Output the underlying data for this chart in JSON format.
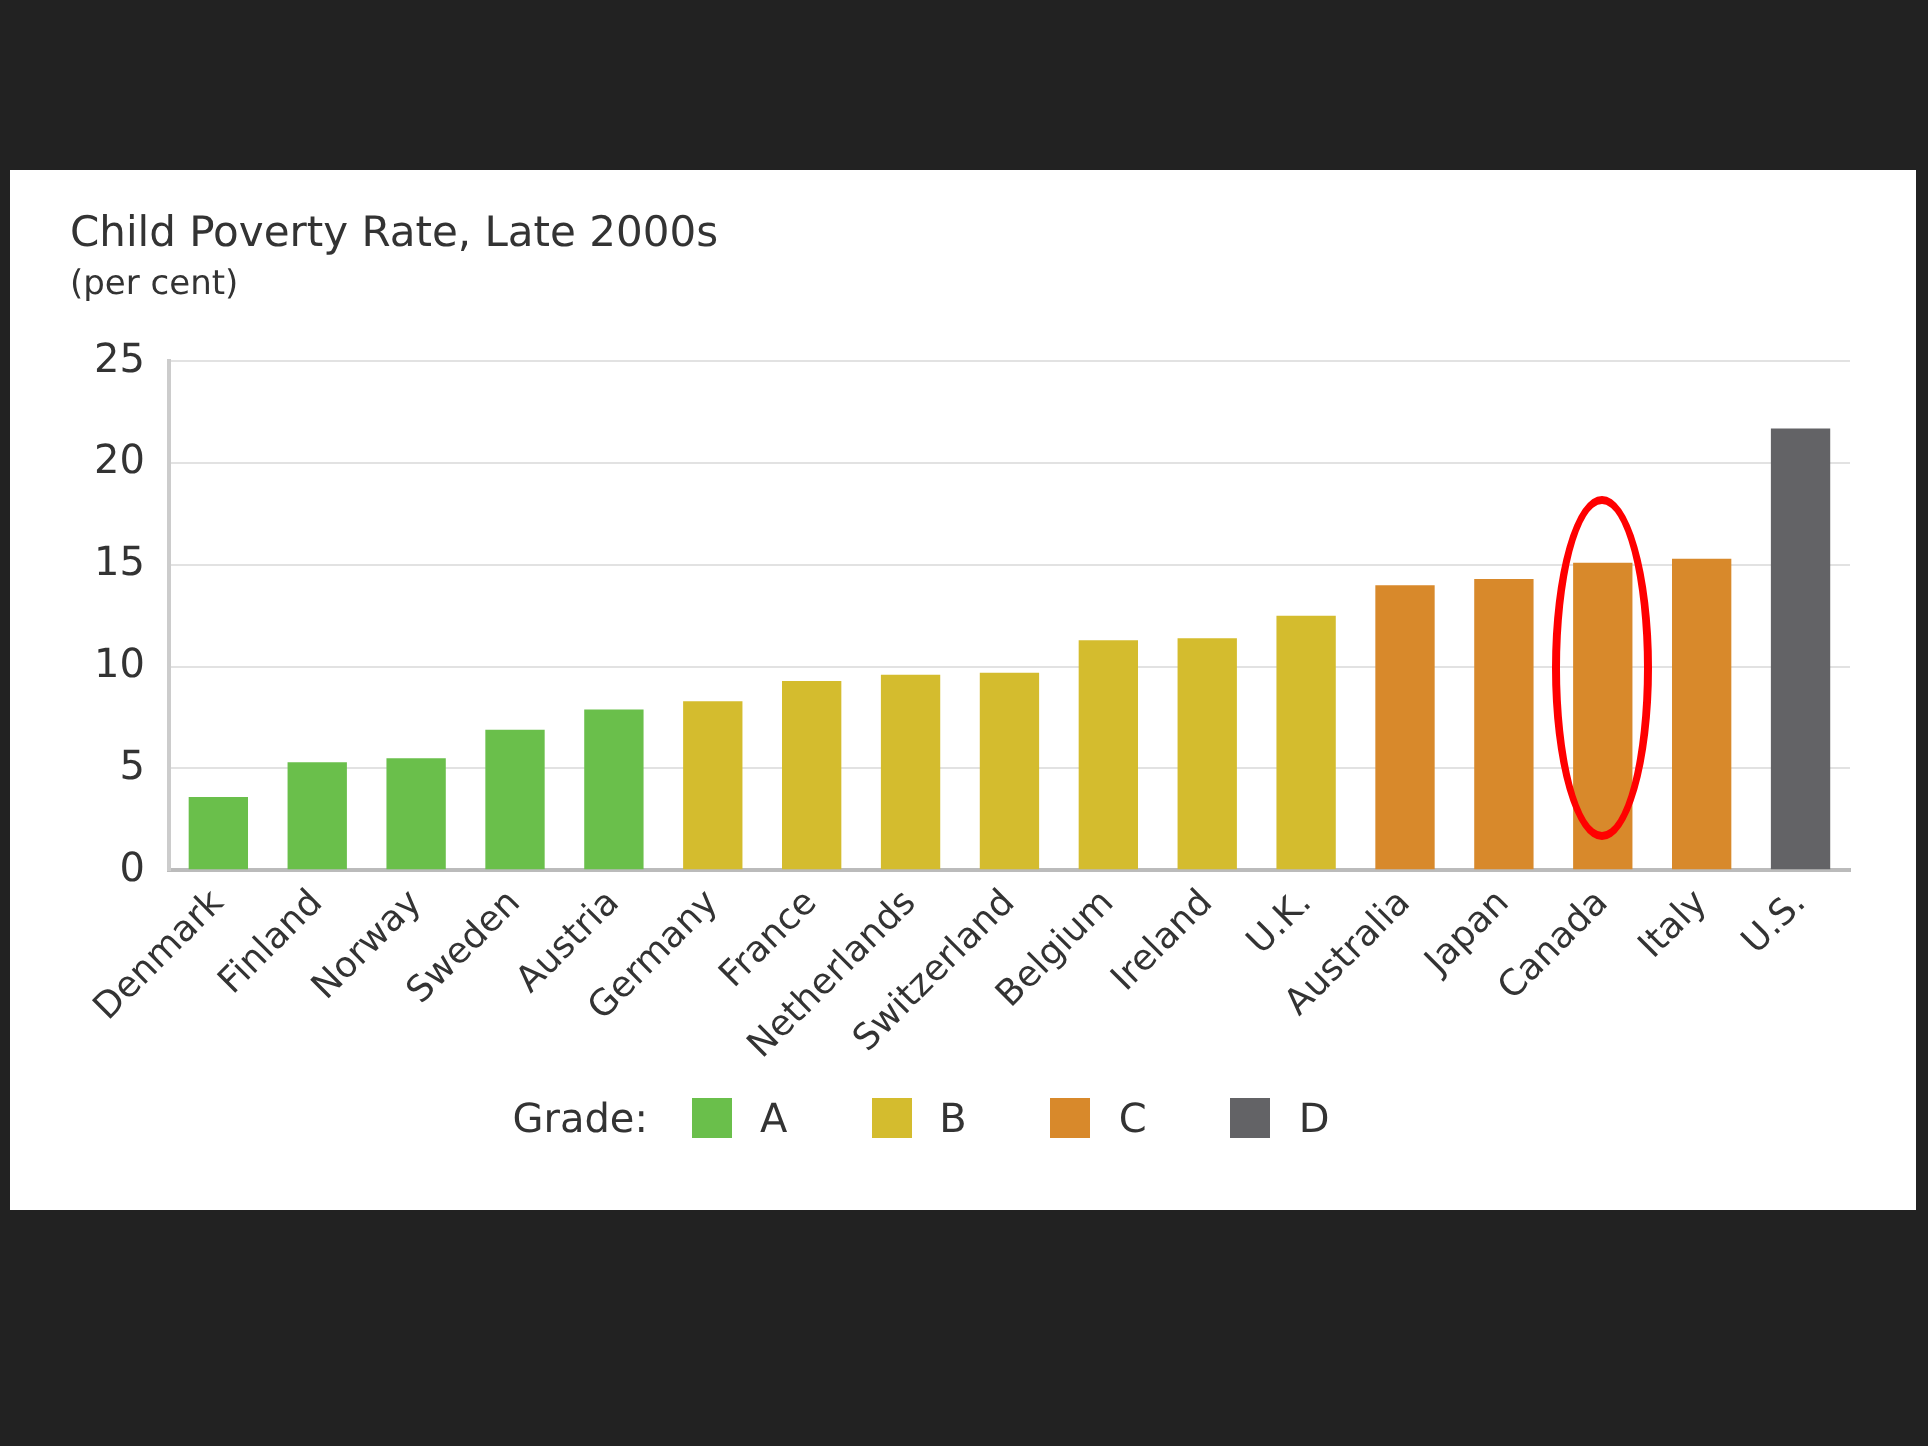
{
  "chart_data": {
    "type": "bar",
    "title": "Child Poverty Rate, Late 2000s",
    "subtitle": "(per cent)",
    "categories": [
      "Denmark",
      "Finland",
      "Norway",
      "Sweden",
      "Austria",
      "Germany",
      "France",
      "Netherlands",
      "Switzerland",
      "Belgium",
      "Ireland",
      "U.K.",
      "Australia",
      "Japan",
      "Canada",
      "Italy",
      "U.S."
    ],
    "stacked": true,
    "series": [
      {
        "name": "A",
        "color": "#6abf4b",
        "values": [
          3.6,
          5.3,
          5.5,
          6.9,
          7.9,
          null,
          null,
          null,
          null,
          null,
          null,
          null,
          null,
          null,
          null,
          null,
          null
        ]
      },
      {
        "name": "B",
        "color": "#d4bc2e",
        "values": [
          null,
          null,
          null,
          null,
          null,
          8.3,
          9.3,
          9.6,
          9.7,
          11.3,
          11.4,
          12.5,
          null,
          null,
          null,
          null,
          null
        ]
      },
      {
        "name": "C",
        "color": "#d8892b",
        "values": [
          null,
          null,
          null,
          null,
          null,
          null,
          null,
          null,
          null,
          null,
          null,
          null,
          14.0,
          14.3,
          15.1,
          15.3,
          null
        ]
      },
      {
        "name": "D",
        "color": "#636366",
        "values": [
          null,
          null,
          null,
          null,
          null,
          null,
          null,
          null,
          null,
          null,
          null,
          null,
          null,
          null,
          null,
          null,
          21.7
        ]
      }
    ],
    "legend_title": "Grade:",
    "legend": "bottom",
    "ylim": [
      0,
      25
    ],
    "yticks": [
      0,
      5,
      10,
      15,
      20,
      25
    ],
    "grid": "y"
  }
}
